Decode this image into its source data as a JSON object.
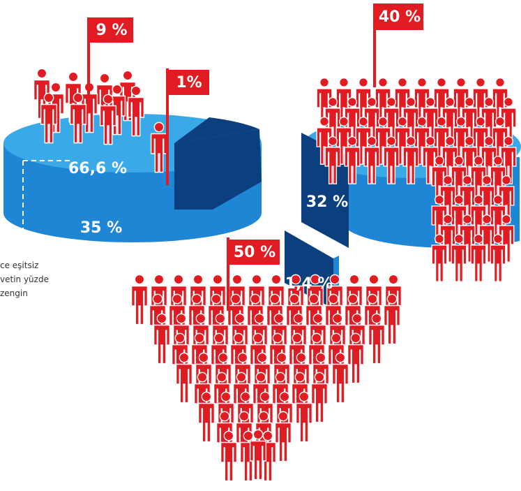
{
  "flags": [
    {
      "label": "9 %"
    },
    {
      "label": "1%"
    },
    {
      "label": "40 %"
    },
    {
      "label": "50 %"
    }
  ],
  "slices": [
    {
      "label": "66,6 %"
    },
    {
      "label": "35 %"
    },
    {
      "label": "32 %"
    },
    {
      "label": "1,4 %"
    }
  ],
  "caption": {
    "lines": [
      "ce eşitsiz",
      "vetin yüzde",
      "zengin"
    ]
  }
}
